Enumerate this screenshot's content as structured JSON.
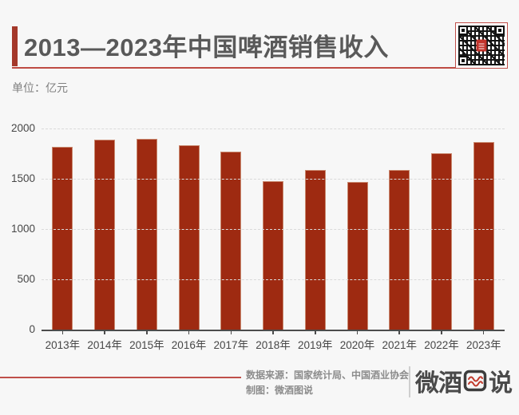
{
  "header": {
    "title": "2013—2023年中国啤酒销售收入",
    "unit_label": "单位：亿元"
  },
  "chart_data": {
    "type": "bar",
    "title": "2013—2023年中国啤酒销售收入",
    "unit": "亿元",
    "categories": [
      "2013年",
      "2014年",
      "2015年",
      "2016年",
      "2017年",
      "2018年",
      "2019年",
      "2020年",
      "2021年",
      "2022年",
      "2023年"
    ],
    "values": [
      1820,
      1890,
      1900,
      1835,
      1770,
      1475,
      1585,
      1470,
      1590,
      1755,
      1865
    ],
    "xlabel": "",
    "ylabel": "亿元",
    "ylim": [
      0,
      2000
    ],
    "yticks": [
      0,
      500,
      1000,
      1500,
      2000
    ],
    "grid": "horizontal-dashed",
    "legend": "none",
    "bar_color": "#9e2a11"
  },
  "footer": {
    "source_label": "数据来源：国家统计局、中国酒业协会",
    "credit_label": "制图：微酒图说",
    "logo": {
      "left_text": "微酒",
      "right_text": "说",
      "icon": "wave-chart-box-icon"
    }
  },
  "colors": {
    "background": "#f7f7f7",
    "bar": "#9e2a11",
    "accent_red": "#bf4b43",
    "title_text": "#595959",
    "axis_text": "#474747",
    "muted_text": "#8c8c8c"
  }
}
